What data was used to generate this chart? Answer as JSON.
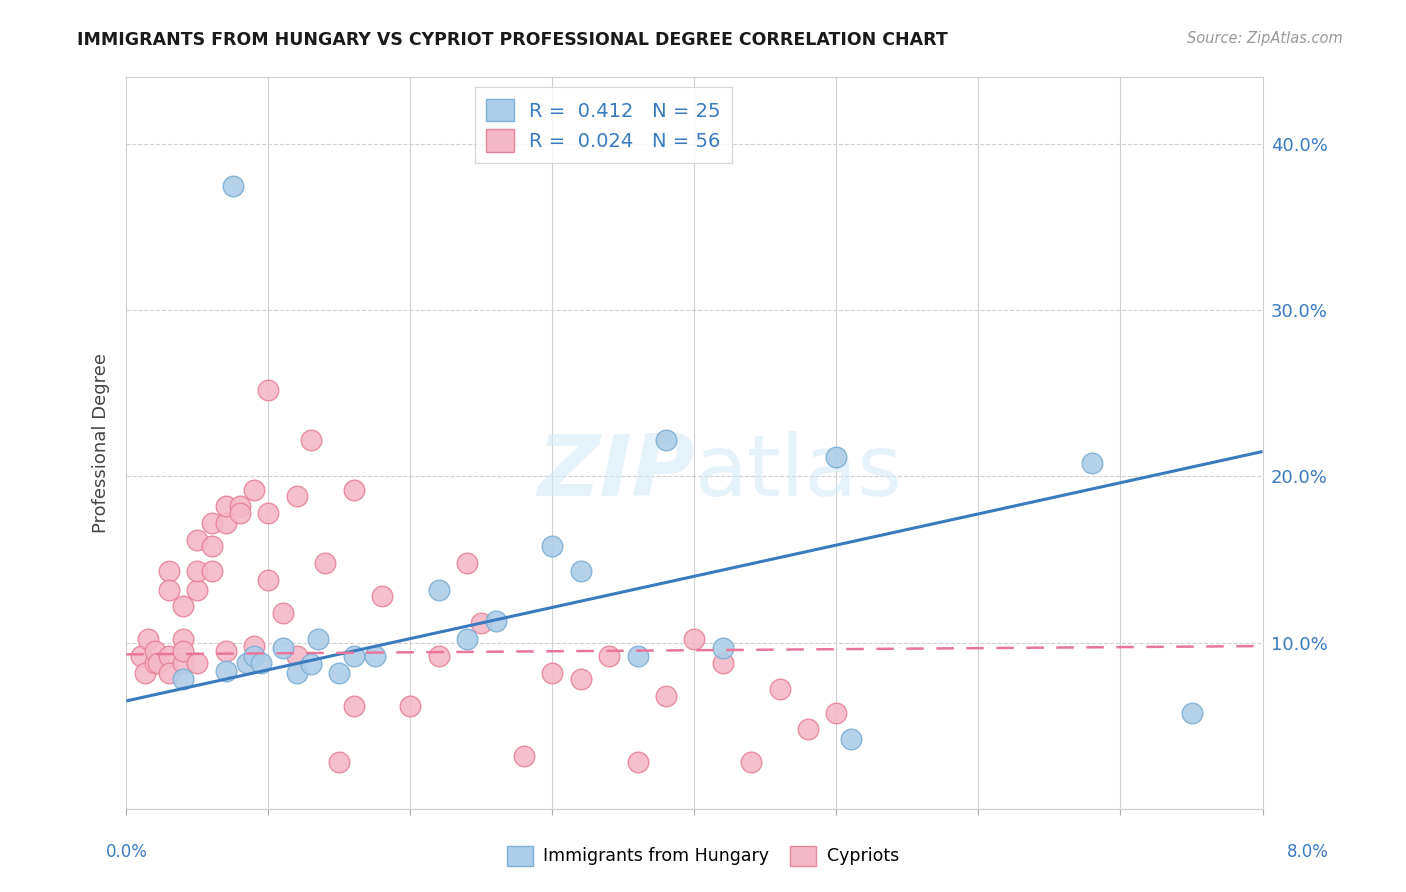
{
  "title": "IMMIGRANTS FROM HUNGARY VS CYPRIOT PROFESSIONAL DEGREE CORRELATION CHART",
  "source": "Source: ZipAtlas.com",
  "ylabel": "Professional Degree",
  "xlim": [
    0.0,
    0.08
  ],
  "ylim": [
    0.0,
    0.44
  ],
  "R_hungary": 0.412,
  "N_hungary": 25,
  "R_cypriot": 0.024,
  "N_cypriot": 56,
  "blue_scatter_fill": "#aecde8",
  "blue_scatter_edge": "#7bafd4",
  "pink_scatter_fill": "#f4b8c8",
  "pink_scatter_edge": "#e8849a",
  "blue_line_color": "#3a7abf",
  "pink_line_color": "#e8759a",
  "background_color": "#ffffff",
  "grid_color": "#d0d0d0",
  "hun_line_x0": 0.0,
  "hun_line_y0": 0.065,
  "hun_line_x1": 0.08,
  "hun_line_y1": 0.215,
  "cyp_line_x0": 0.0,
  "cyp_line_y0": 0.093,
  "cyp_line_x1": 0.08,
  "cyp_line_y1": 0.098,
  "hungary_x": [
    0.004,
    0.007,
    0.0075,
    0.0085,
    0.009,
    0.0095,
    0.011,
    0.012,
    0.013,
    0.0135,
    0.015,
    0.016,
    0.0175,
    0.022,
    0.024,
    0.026,
    0.03,
    0.032,
    0.036,
    0.038,
    0.042,
    0.05,
    0.051,
    0.068,
    0.075
  ],
  "hungary_y": [
    0.078,
    0.083,
    0.375,
    0.088,
    0.092,
    0.088,
    0.097,
    0.082,
    0.087,
    0.102,
    0.082,
    0.092,
    0.092,
    0.132,
    0.102,
    0.113,
    0.158,
    0.143,
    0.092,
    0.222,
    0.097,
    0.212,
    0.042,
    0.208,
    0.058
  ],
  "cypriot_x": [
    0.001,
    0.0013,
    0.0015,
    0.002,
    0.002,
    0.0022,
    0.003,
    0.003,
    0.003,
    0.003,
    0.004,
    0.004,
    0.004,
    0.004,
    0.005,
    0.005,
    0.005,
    0.005,
    0.006,
    0.006,
    0.006,
    0.007,
    0.007,
    0.007,
    0.008,
    0.008,
    0.009,
    0.009,
    0.01,
    0.01,
    0.01,
    0.011,
    0.012,
    0.012,
    0.013,
    0.014,
    0.015,
    0.016,
    0.016,
    0.018,
    0.02,
    0.022,
    0.024,
    0.025,
    0.028,
    0.03,
    0.032,
    0.034,
    0.036,
    0.038,
    0.04,
    0.042,
    0.044,
    0.046,
    0.048,
    0.05
  ],
  "cypriot_y": [
    0.092,
    0.082,
    0.102,
    0.088,
    0.095,
    0.088,
    0.092,
    0.143,
    0.132,
    0.082,
    0.088,
    0.102,
    0.095,
    0.122,
    0.162,
    0.132,
    0.143,
    0.088,
    0.158,
    0.172,
    0.143,
    0.172,
    0.182,
    0.095,
    0.182,
    0.178,
    0.192,
    0.098,
    0.252,
    0.178,
    0.138,
    0.118,
    0.188,
    0.092,
    0.222,
    0.148,
    0.028,
    0.192,
    0.062,
    0.128,
    0.062,
    0.092,
    0.148,
    0.112,
    0.032,
    0.082,
    0.078,
    0.092,
    0.028,
    0.068,
    0.102,
    0.088,
    0.028,
    0.072,
    0.048,
    0.058
  ],
  "legend_label_hungary": "Immigrants from Hungary",
  "legend_label_cypriot": "Cypriots",
  "ytick_vals": [
    0.0,
    0.1,
    0.2,
    0.3,
    0.4
  ],
  "ytick_labels": [
    "",
    "10.0%",
    "20.0%",
    "30.0%",
    "40.0%"
  ]
}
